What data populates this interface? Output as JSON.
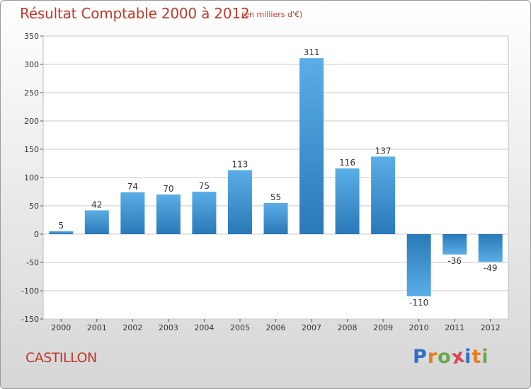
{
  "header": {
    "title": "Résultat Comptable 2000 à 2012",
    "subtitle": "(en milliers d'€)"
  },
  "footer": {
    "commune": "CASTILLON",
    "logo_letters": [
      "P",
      "r",
      "o",
      "x",
      "i",
      "t",
      "i"
    ],
    "logo_colors": [
      "#2f6fc6",
      "#e67e22",
      "#6aa84f",
      "#d64550",
      "#2f6fc6",
      "#e67e22",
      "#6aa84f"
    ]
  },
  "colors": {
    "bar_top": "#5aaee6",
    "bar_bottom": "#2a78b8",
    "grid": "#c9c9c9",
    "accent": "#c0392b"
  },
  "chart_data": {
    "type": "bar",
    "title": "Résultat Comptable 2000 à 2012",
    "subtitle": "(en milliers d'€)",
    "xlabel": "",
    "ylabel": "",
    "categories": [
      "2000",
      "2001",
      "2002",
      "2003",
      "2004",
      "2005",
      "2006",
      "2007",
      "2008",
      "2009",
      "2010",
      "2011",
      "2012"
    ],
    "values": [
      5,
      42,
      74,
      70,
      75,
      113,
      55,
      311,
      116,
      137,
      -110,
      -36,
      -49
    ],
    "ylim": [
      -150,
      350
    ],
    "yticks": [
      350,
      300,
      250,
      200,
      150,
      100,
      50,
      0,
      -50,
      -100,
      -150
    ],
    "ytick_labels": [
      "350",
      "300",
      "250",
      "200",
      "150",
      "100",
      "50",
      "0",
      "-50",
      "-100",
      "-150"
    ],
    "value_labels": [
      "5",
      "42",
      "74",
      "70",
      "75",
      "113",
      "55",
      "311",
      "116",
      "137",
      "-110",
      "-36",
      "-49"
    ],
    "grid": true
  }
}
